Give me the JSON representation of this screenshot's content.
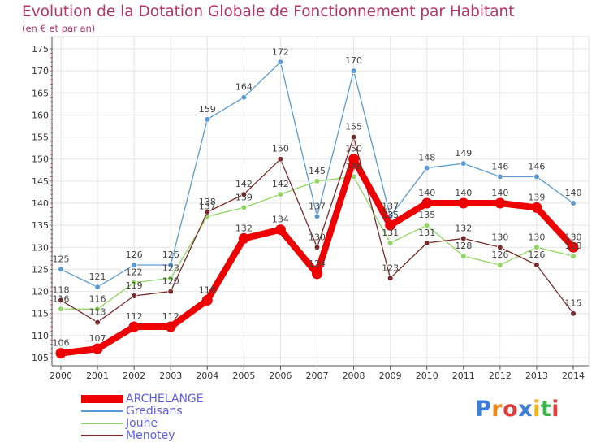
{
  "title": "Evolution de la Dotation Globale de Fonctionnement par Habitant",
  "subtitle": "(en € et par an)",
  "logo": {
    "letters": [
      "P",
      "r",
      "o",
      "x",
      "i",
      "t",
      "i"
    ],
    "colors": [
      "#3b7dd8",
      "#f08a17",
      "#e23b3b",
      "#3b7dd8",
      "#f0b417",
      "#3bb54a",
      "#e23b3b"
    ]
  },
  "chart_data": {
    "type": "line",
    "title": "Evolution de la Dotation Globale de Fonctionnement par Habitant",
    "ylabel": "(en € et par an)",
    "xlabel": "",
    "x": [
      2000,
      2001,
      2002,
      2003,
      2004,
      2005,
      2006,
      2007,
      2008,
      2009,
      2010,
      2011,
      2012,
      2013,
      2014
    ],
    "ylim": [
      105,
      175
    ],
    "yticks": [
      105,
      110,
      115,
      120,
      125,
      130,
      135,
      140,
      145,
      150,
      155,
      160,
      165,
      170,
      175
    ],
    "grid": true,
    "series": [
      {
        "name": "ARCHELANGE",
        "color": "#ee0000",
        "values": [
          106,
          107,
          112,
          112,
          118,
          132,
          134,
          124,
          150,
          135,
          140,
          140,
          140,
          139,
          130
        ]
      },
      {
        "name": "Gredisans",
        "color": "#5b9bd5",
        "values": [
          125,
          121,
          126,
          126,
          159,
          164,
          172,
          137,
          170,
          137,
          148,
          149,
          146,
          146,
          140
        ]
      },
      {
        "name": "Jouhe",
        "color": "#8ed660",
        "values": [
          116,
          116,
          122,
          123,
          137,
          139,
          142,
          145,
          146,
          131,
          135,
          128,
          126,
          130,
          128
        ]
      },
      {
        "name": "Menotey",
        "color": "#7a2a2a",
        "values": [
          118,
          113,
          119,
          120,
          138,
          142,
          150,
          130,
          155,
          123,
          131,
          132,
          130,
          126,
          115
        ]
      }
    ],
    "legend_position": "bottom-left"
  }
}
